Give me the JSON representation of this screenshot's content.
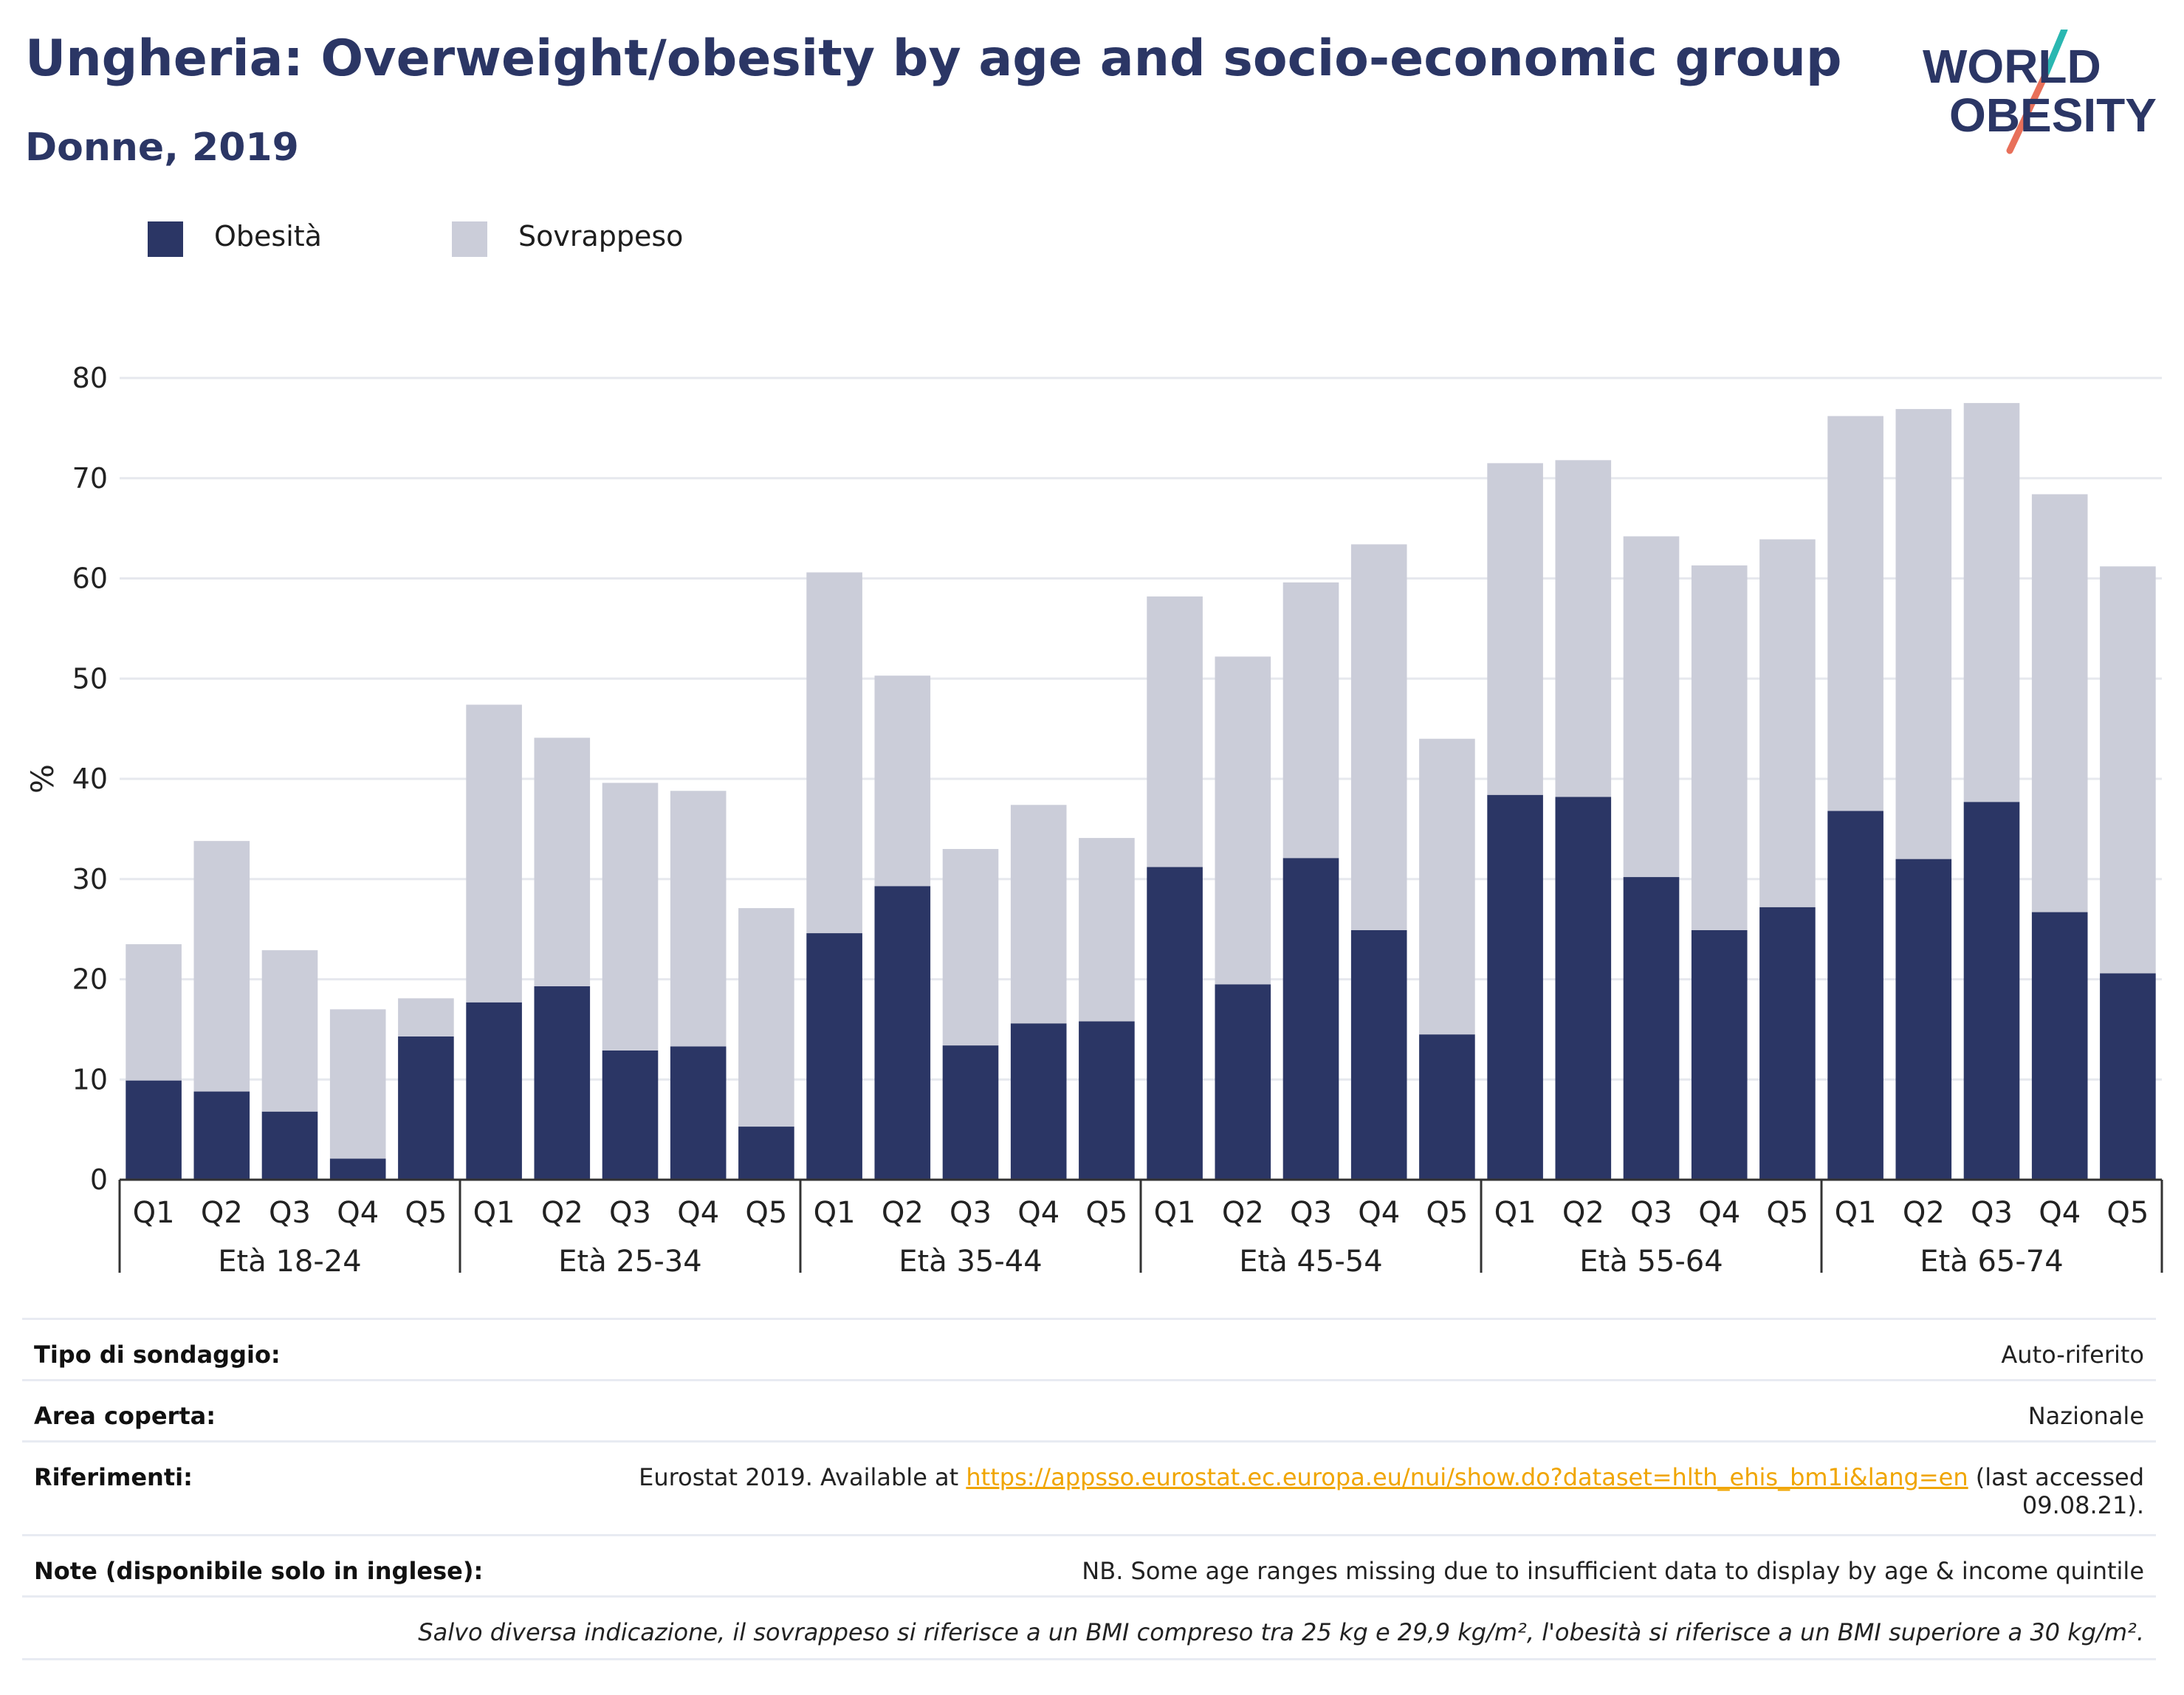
{
  "header": {
    "title": "Ungheria: Overweight/obesity by age and socio-economic group",
    "subtitle": "Donne, 2019"
  },
  "logo": {
    "line1": "WORLD",
    "line2": "OBESITY",
    "colors": {
      "text": "#2b3665",
      "slash_top": "#2ab7b1",
      "slash_bottom": "#e8705a"
    }
  },
  "colors": {
    "obesity": "#2b3665",
    "overweight": "#cbcdd9",
    "grid": "#e6e8ee",
    "axis": "#333333"
  },
  "chart_data": {
    "type": "bar",
    "stacked": true,
    "ylabel": "%",
    "ylim": [
      0,
      80
    ],
    "yticks": [
      0,
      10,
      20,
      30,
      40,
      50,
      60,
      70,
      80
    ],
    "grid": true,
    "legend_position": "top-left",
    "groups": [
      {
        "label": "Età 18-24",
        "categories": [
          "Q1",
          "Q2",
          "Q3",
          "Q4",
          "Q5"
        ]
      },
      {
        "label": "Età 25-34",
        "categories": [
          "Q1",
          "Q2",
          "Q3",
          "Q4",
          "Q5"
        ]
      },
      {
        "label": "Età 35-44",
        "categories": [
          "Q1",
          "Q2",
          "Q3",
          "Q4",
          "Q5"
        ]
      },
      {
        "label": "Età 45-54",
        "categories": [
          "Q1",
          "Q2",
          "Q3",
          "Q4",
          "Q5"
        ]
      },
      {
        "label": "Età 55-64",
        "categories": [
          "Q1",
          "Q2",
          "Q3",
          "Q4",
          "Q5"
        ]
      },
      {
        "label": "Età 65-74",
        "categories": [
          "Q1",
          "Q2",
          "Q3",
          "Q4",
          "Q5"
        ]
      }
    ],
    "series": [
      {
        "name": "Obesità",
        "color": "#2b3665",
        "values": [
          9.9,
          8.8,
          6.8,
          2.1,
          14.3,
          17.7,
          19.3,
          12.9,
          13.3,
          5.3,
          24.6,
          29.3,
          13.4,
          15.6,
          15.8,
          31.2,
          19.5,
          32.1,
          24.9,
          14.5,
          38.4,
          38.2,
          30.2,
          24.9,
          27.2,
          36.8,
          32.0,
          37.7,
          26.7,
          20.6
        ]
      },
      {
        "name": "Sovrappeso",
        "color": "#cbcdd9",
        "values": [
          13.6,
          25.0,
          16.1,
          14.9,
          3.8,
          29.7,
          24.8,
          26.7,
          25.5,
          21.8,
          36.0,
          21.0,
          19.6,
          21.8,
          18.3,
          27.0,
          32.7,
          27.5,
          38.5,
          29.5,
          33.1,
          33.6,
          34.0,
          36.4,
          36.7,
          39.4,
          44.9,
          39.8,
          41.7,
          40.6
        ]
      }
    ]
  },
  "info": {
    "survey_label": "Tipo di sondaggio:",
    "survey_value": "Auto-riferito",
    "area_label": "Area coperta:",
    "area_value": "Nazionale",
    "refs_label": "Riferimenti:",
    "refs_prefix": "Eurostat 2019. Available at ",
    "refs_link": "https://appsso.eurostat.ec.europa.eu/nui/show.do?dataset=hlth_ehis_bm1i&lang=en",
    "refs_suffix": " (last accessed",
    "refs_date": "09.08.21).",
    "notes_label": "Note (disponibile solo in inglese):",
    "notes_value": "NB. Some age ranges missing due to insufficient data to display by age & income quintile",
    "footnote": "Salvo diversa indicazione, il sovrappeso si riferisce a un BMI compreso tra 25 kg e 29,9 kg/m², l'obesità si riferisce a un BMI superiore a 30 kg/m²."
  }
}
